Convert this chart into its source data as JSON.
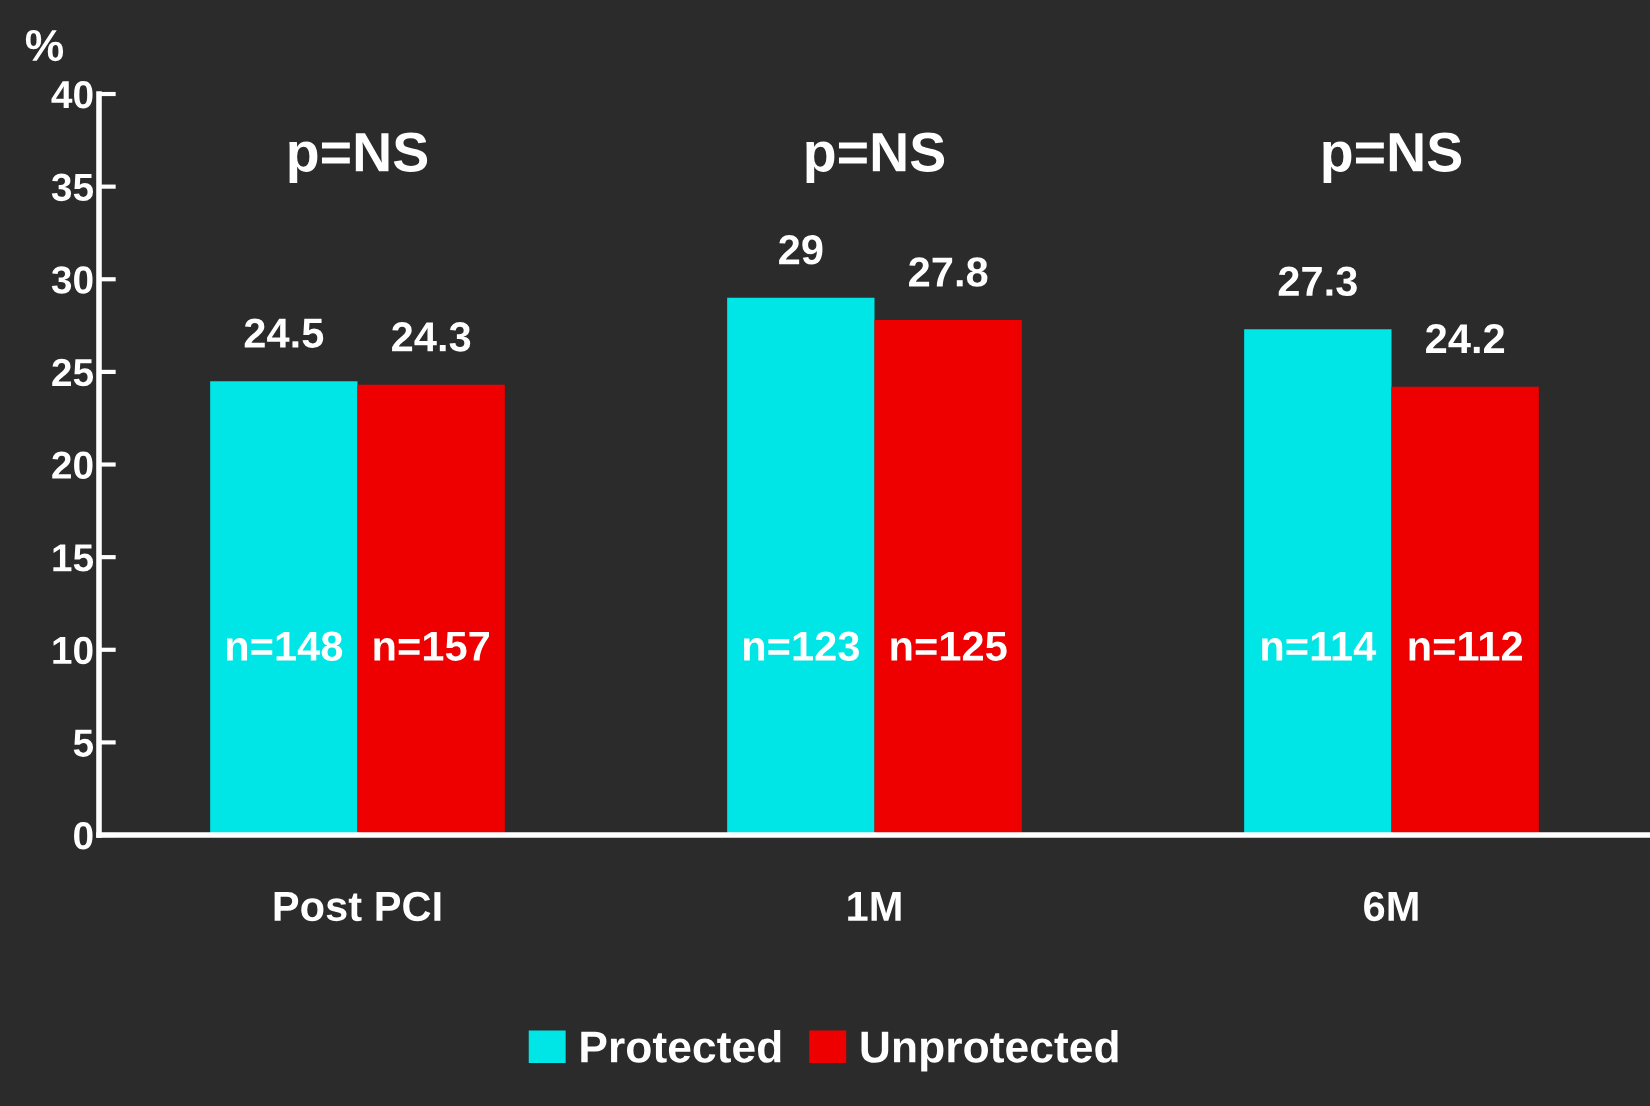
{
  "chart_data": {
    "type": "bar",
    "ylabel": "%",
    "categories": [
      "Post PCI",
      "1M",
      "6M"
    ],
    "series": [
      {
        "name": "Protected",
        "color": "#00e5e5",
        "values": [
          24.5,
          29,
          27.3
        ]
      },
      {
        "name": "Unprotected",
        "color": "#ee0000",
        "values": [
          24.3,
          27.8,
          24.2
        ]
      }
    ],
    "ylim": [
      0,
      40
    ],
    "yticks": [
      0,
      5,
      10,
      15,
      20,
      25,
      30,
      35,
      40
    ],
    "data_labels": true,
    "grid": false,
    "legend": "bottom",
    "annotations": [
      "p=NS",
      "p=NS",
      "p=NS",
      "n=148",
      "n=157",
      "n=123",
      "n=125",
      "n=114",
      "n=112"
    ]
  }
}
